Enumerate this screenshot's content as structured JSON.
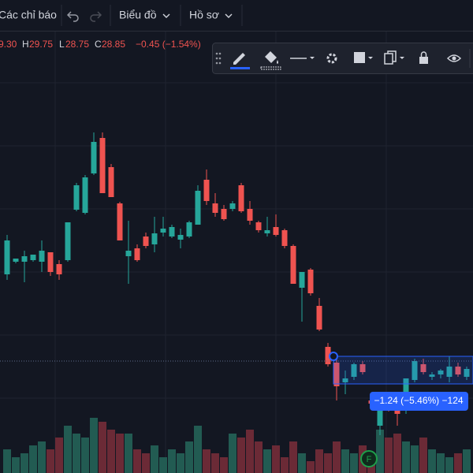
{
  "toolbar": {
    "items": [
      "Các chỉ báo",
      "Biểu đồ",
      "Hồ sơ"
    ]
  },
  "legend": [
    "9.30",
    "H",
    "29.75",
    "L",
    "28.75",
    "C",
    "28.85",
    "−0.45 (−1.54%)"
  ],
  "measure_label": "−1.24 (−5.46%) −124",
  "marker": "F",
  "chart_data": {
    "type": "candlestick",
    "ylim": [
      0,
      600
    ],
    "up_color": "#26a69a",
    "down_color": "#ef5350",
    "volume_up_color": "#225b52",
    "volume_down_color": "#6b2a36",
    "open": [
      252,
      268,
      268,
      270,
      268,
      280,
      265,
      270,
      334,
      330,
      380,
      425,
      388,
      342,
      275,
      285,
      300,
      290,
      305,
      300,
      296,
      300,
      315,
      372,
      342,
      335,
      335,
      365,
      335,
      318,
      304,
      312,
      308,
      288,
      235,
      258,
      212,
      160,
      140,
      115,
      122,
      138,
      92,
      60,
      85,
      85,
      100,
      118,
      138,
      122,
      125,
      122,
      135,
      122
    ],
    "high": [
      302,
      272,
      282,
      277,
      295,
      280,
      270,
      318,
      368,
      378,
      432,
      432,
      392,
      344,
      320,
      290,
      305,
      325,
      325,
      315,
      310,
      320,
      365,
      385,
      355,
      340,
      345,
      368,
      345,
      320,
      325,
      328,
      310,
      290,
      255,
      260,
      222,
      165,
      148,
      130,
      140,
      142,
      95,
      90,
      88,
      90,
      120,
      145,
      145,
      128,
      132,
      148,
      140,
      135
    ],
    "low": [
      245,
      266,
      242,
      268,
      255,
      250,
      245,
      268,
      332,
      328,
      378,
      355,
      350,
      295,
      240,
      268,
      285,
      280,
      300,
      298,
      285,
      298,
      315,
      340,
      325,
      320,
      332,
      330,
      315,
      305,
      300,
      300,
      285,
      240,
      192,
      225,
      180,
      135,
      92,
      100,
      118,
      125,
      85,
      48,
      78,
      60,
      75,
      115,
      125,
      118,
      120,
      115,
      122,
      118
    ],
    "close": [
      295,
      272,
      275,
      277,
      282,
      255,
      252,
      318,
      365,
      375,
      420,
      355,
      350,
      295,
      282,
      270,
      288,
      304,
      310,
      312,
      302,
      318,
      358,
      345,
      330,
      322,
      342,
      332,
      320,
      308,
      308,
      302,
      288,
      240,
      255,
      228,
      182,
      138,
      110,
      120,
      138,
      128,
      88,
      85,
      80,
      75,
      120,
      142,
      128,
      125,
      130,
      135,
      125,
      132
    ],
    "volume": [
      30,
      20,
      25,
      35,
      40,
      30,
      45,
      60,
      50,
      45,
      70,
      65,
      55,
      50,
      50,
      30,
      25,
      35,
      20,
      30,
      25,
      40,
      60,
      30,
      25,
      20,
      50,
      45,
      55,
      40,
      30,
      35,
      20,
      40,
      25,
      15,
      30,
      25,
      40,
      30,
      25,
      35,
      20,
      55,
      45,
      50,
      40,
      35,
      45,
      30,
      25,
      20,
      25,
      30
    ]
  }
}
